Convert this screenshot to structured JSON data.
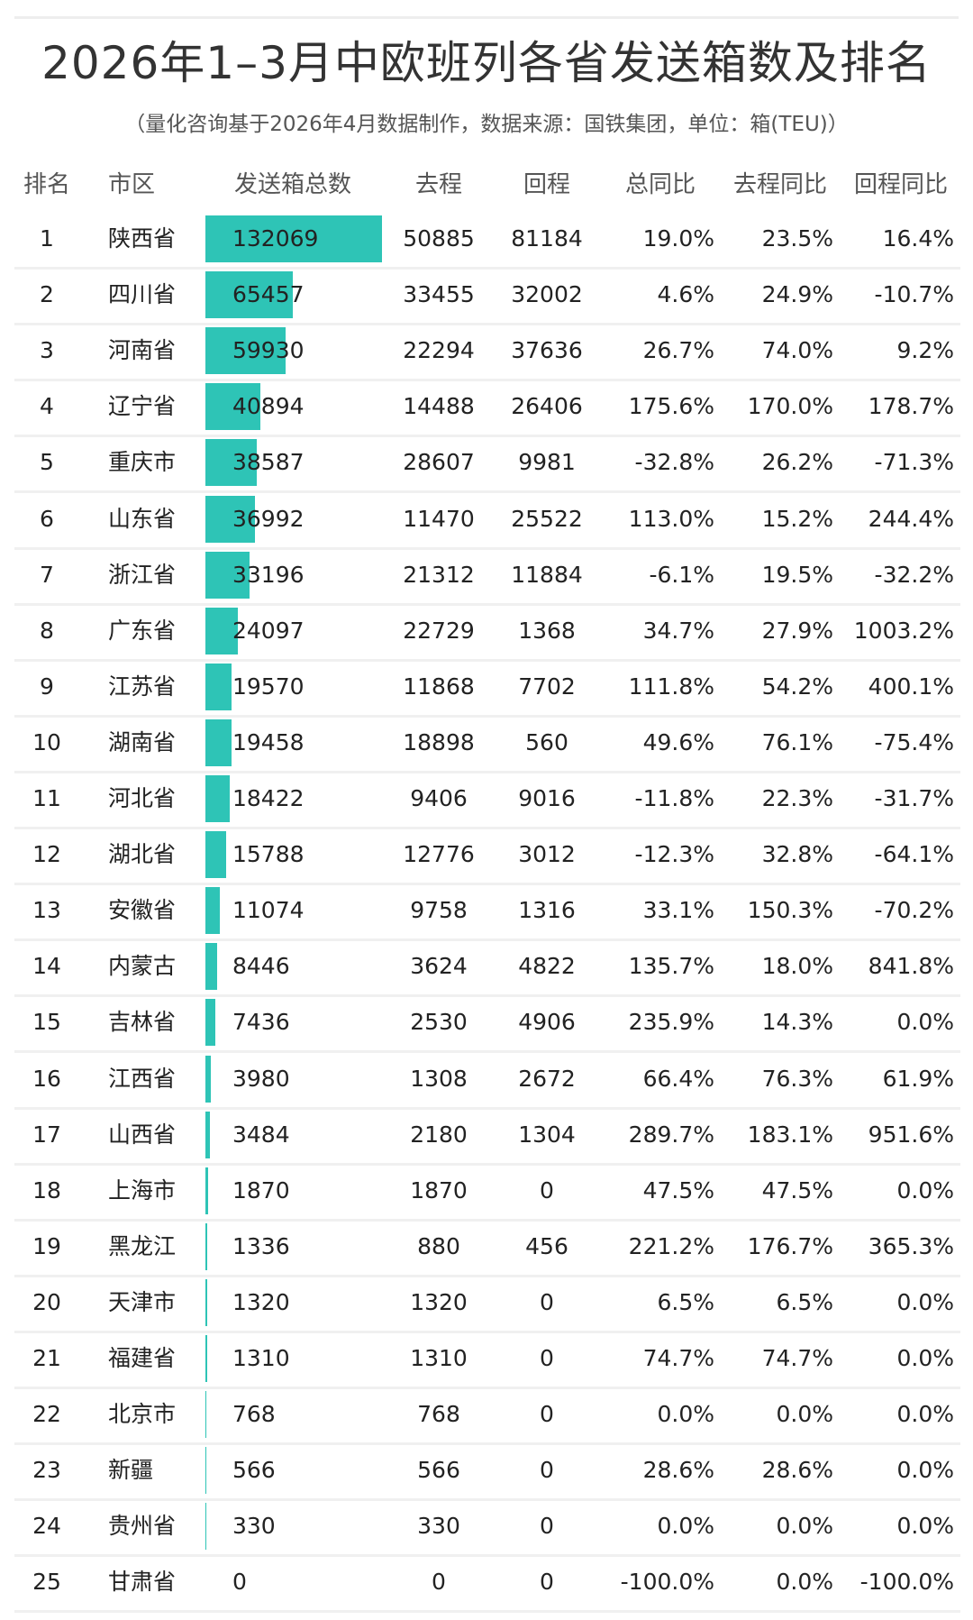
{
  "title": "2026年1–3月中欧班列各省发送箱数及排名",
  "subtitle": "（量化咨询基于2026年4月数据制作，数据来源：国铁集团，单位：箱(TEU)）",
  "accent_color": "#2ec4b6",
  "chart_data": {
    "type": "table",
    "title": "2026年1–3月中欧班列各省发送箱数及排名",
    "columns": [
      "排名",
      "市区",
      "发送箱总数",
      "去程",
      "回程",
      "总同比",
      "去程同比",
      "回程同比"
    ],
    "bar_column": "发送箱总数",
    "rows": [
      [
        "1",
        "陕西省",
        132069,
        50885,
        81184,
        "19.0%",
        "23.5%",
        "16.4%"
      ],
      [
        "2",
        "四川省",
        65457,
        33455,
        32002,
        "4.6%",
        "24.9%",
        "-10.7%"
      ],
      [
        "3",
        "河南省",
        59930,
        22294,
        37636,
        "26.7%",
        "74.0%",
        "9.2%"
      ],
      [
        "4",
        "辽宁省",
        40894,
        14488,
        26406,
        "175.6%",
        "170.0%",
        "178.7%"
      ],
      [
        "5",
        "重庆市",
        38587,
        28607,
        9981,
        "-32.8%",
        "26.2%",
        "-71.3%"
      ],
      [
        "6",
        "山东省",
        36992,
        11470,
        25522,
        "113.0%",
        "15.2%",
        "244.4%"
      ],
      [
        "7",
        "浙江省",
        33196,
        21312,
        11884,
        "-6.1%",
        "19.5%",
        "-32.2%"
      ],
      [
        "8",
        "广东省",
        24097,
        22729,
        1368,
        "34.7%",
        "27.9%",
        "1003.2%"
      ],
      [
        "9",
        "江苏省",
        19570,
        11868,
        7702,
        "111.8%",
        "54.2%",
        "400.1%"
      ],
      [
        "10",
        "湖南省",
        19458,
        18898,
        560,
        "49.6%",
        "76.1%",
        "-75.4%"
      ],
      [
        "11",
        "河北省",
        18422,
        9406,
        9016,
        "-11.8%",
        "22.3%",
        "-31.7%"
      ],
      [
        "12",
        "湖北省",
        15788,
        12776,
        3012,
        "-12.3%",
        "32.8%",
        "-64.1%"
      ],
      [
        "13",
        "安徽省",
        11074,
        9758,
        1316,
        "33.1%",
        "150.3%",
        "-70.2%"
      ],
      [
        "14",
        "内蒙古",
        8446,
        3624,
        4822,
        "135.7%",
        "18.0%",
        "841.8%"
      ],
      [
        "15",
        "吉林省",
        7436,
        2530,
        4906,
        "235.9%",
        "14.3%",
        "0.0%"
      ],
      [
        "16",
        "江西省",
        3980,
        1308,
        2672,
        "66.4%",
        "76.3%",
        "61.9%"
      ],
      [
        "17",
        "山西省",
        3484,
        2180,
        1304,
        "289.7%",
        "183.1%",
        "951.6%"
      ],
      [
        "18",
        "上海市",
        1870,
        1870,
        0,
        "47.5%",
        "47.5%",
        "0.0%"
      ],
      [
        "19",
        "黑龙江",
        1336,
        880,
        456,
        "221.2%",
        "176.7%",
        "365.3%"
      ],
      [
        "20",
        "天津市",
        1320,
        1320,
        0,
        "6.5%",
        "6.5%",
        "0.0%"
      ],
      [
        "21",
        "福建省",
        1310,
        1310,
        0,
        "74.7%",
        "74.7%",
        "0.0%"
      ],
      [
        "22",
        "北京市",
        768,
        768,
        0,
        "0.0%",
        "0.0%",
        "0.0%"
      ],
      [
        "23",
        "新疆",
        566,
        566,
        0,
        "28.6%",
        "28.6%",
        "0.0%"
      ],
      [
        "24",
        "贵州省",
        330,
        330,
        0,
        "0.0%",
        "0.0%",
        "0.0%"
      ],
      [
        "25",
        "甘肃省",
        0,
        0,
        0,
        "-100.0%",
        "0.0%",
        "-100.0%"
      ]
    ]
  }
}
